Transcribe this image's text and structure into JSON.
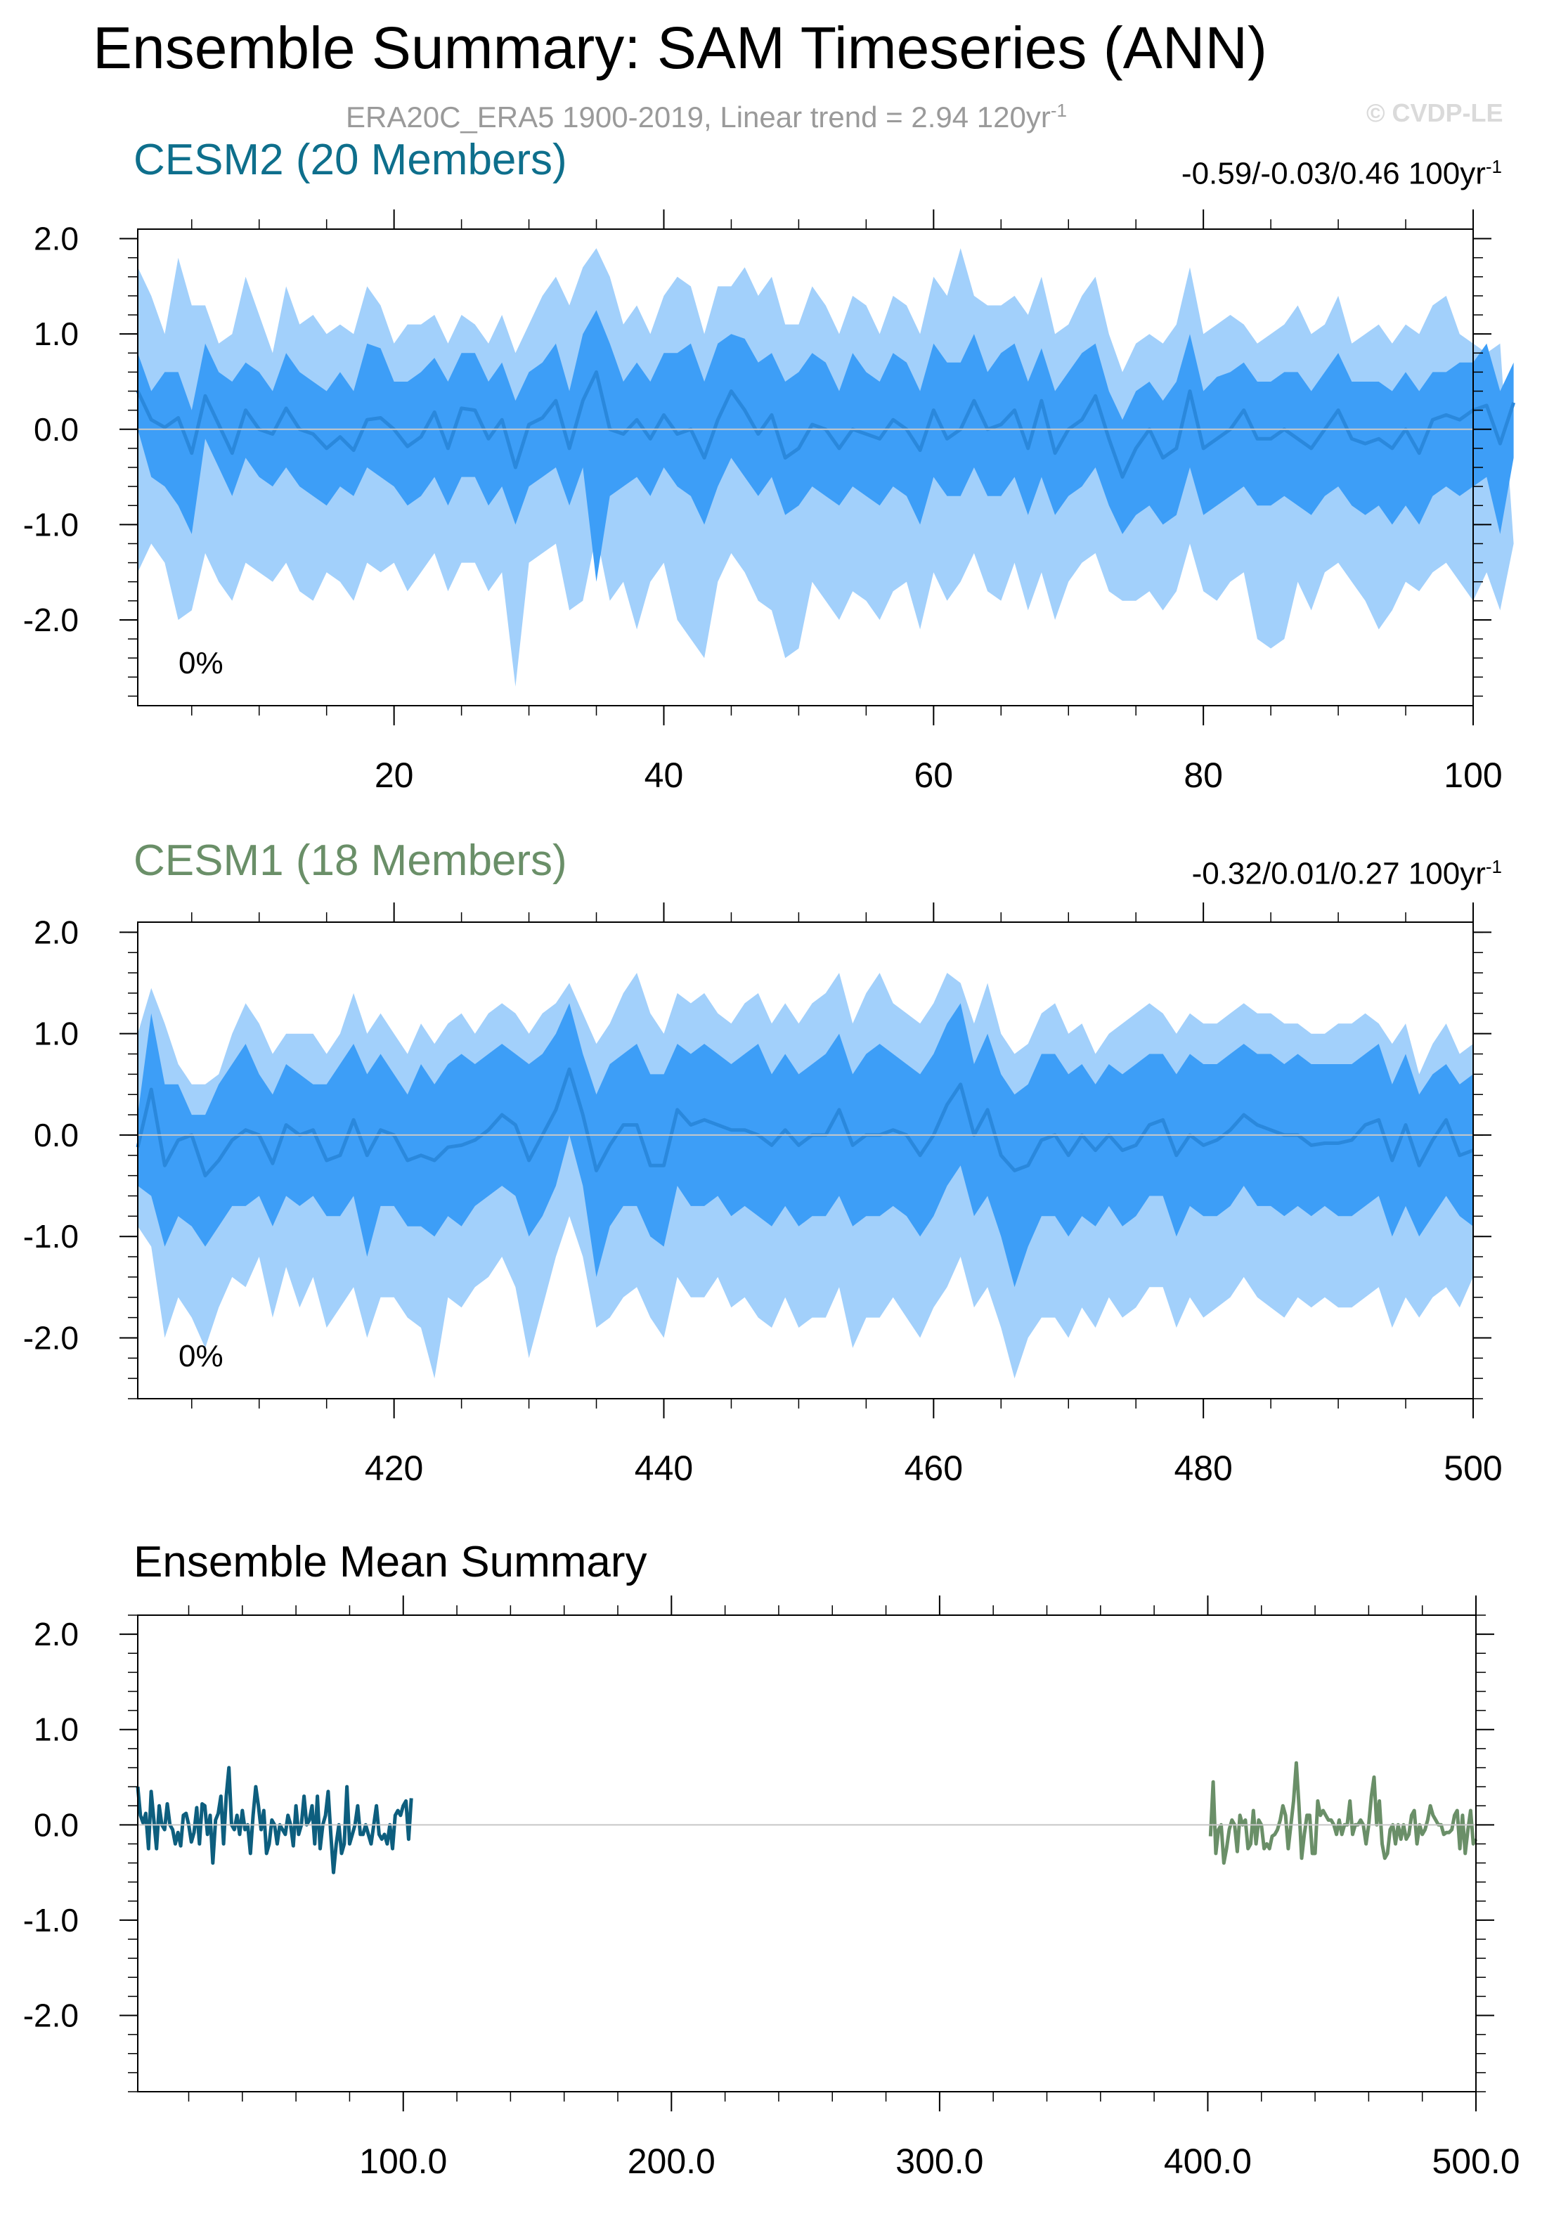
{
  "title": "Ensemble Summary: SAM Timeseries (ANN)",
  "subtitle": "ERA20C_ERA5 1900-2019, Linear trend = 2.94 120yr",
  "subtitle_sup": "-1",
  "copyright": "© CVDP-LE",
  "panels": [
    {
      "title": "CESM2 (20 Members)",
      "title_color": "#0e6f8c",
      "trend_text": "-0.59/-0.03/0.46 100yr",
      "trend_sup": "-1",
      "pct_label": "0%"
    },
    {
      "title": "CESM1 (18 Members)",
      "title_color": "#6a8f68",
      "trend_text": "-0.32/0.01/0.27 100yr",
      "trend_sup": "-1",
      "pct_label": "0%"
    },
    {
      "title": "Ensemble Mean Summary",
      "title_color": "#000000"
    }
  ],
  "colors": {
    "outer_band": "#a2d0fb",
    "inner_band": "#3d9ef7",
    "median_line": "#2a88dc",
    "cesm2_line": "#0d5e7e",
    "cesm1_line": "#6a8f68"
  },
  "chart_data": [
    {
      "type": "area",
      "name": "CESM2 (20 Members)",
      "xlim": [
        1,
        100
      ],
      "ylim": [
        -2.9,
        2.1
      ],
      "yticks": [
        2.0,
        1.0,
        0.0,
        -1.0,
        -2.0
      ],
      "ytick_labels": [
        "2.0",
        "1.0",
        "0.0",
        "-1.0",
        "-2.0"
      ],
      "xticks": [
        20,
        40,
        60,
        80,
        100
      ],
      "xtick_labels": [
        "20",
        "40",
        "60",
        "80",
        "100"
      ],
      "x_start": 1,
      "median": [
        0.4,
        0.1,
        0.02,
        0.12,
        -0.25,
        0.35,
        0.05,
        -0.25,
        0.2,
        0.0,
        -0.05,
        0.22,
        0.0,
        -0.05,
        -0.2,
        -0.08,
        -0.22,
        0.1,
        0.12,
        0.0,
        -0.18,
        -0.08,
        0.18,
        -0.2,
        0.22,
        0.2,
        -0.1,
        0.1,
        -0.4,
        0.05,
        0.12,
        0.3,
        -0.2,
        0.3,
        0.6,
        0.0,
        -0.05,
        0.1,
        -0.1,
        0.15,
        -0.05,
        0.0,
        -0.3,
        0.1,
        0.4,
        0.2,
        -0.05,
        0.15,
        -0.3,
        -0.2,
        0.05,
        0.0,
        -0.2,
        0.0,
        -0.05,
        -0.1,
        0.1,
        0.0,
        -0.22,
        0.2,
        -0.1,
        0.0,
        0.3,
        0.0,
        0.05,
        0.2,
        -0.2,
        0.3,
        -0.25,
        0.0,
        0.1,
        0.35,
        -0.1,
        -0.5,
        -0.2,
        0.0,
        -0.3,
        -0.2,
        0.4,
        -0.2,
        -0.1,
        0.0,
        0.2,
        -0.1,
        -0.1,
        0.0,
        -0.1,
        -0.2,
        0.0,
        0.2,
        -0.1,
        -0.15,
        -0.1,
        -0.2,
        0.0,
        -0.25,
        0.1,
        0.15,
        0.1,
        0.2,
        0.25,
        -0.15,
        0.28
      ],
      "inner_upper": [
        0.8,
        0.4,
        0.6,
        0.6,
        0.2,
        0.9,
        0.6,
        0.5,
        0.7,
        0.6,
        0.4,
        0.8,
        0.6,
        0.5,
        0.4,
        0.6,
        0.4,
        0.9,
        0.85,
        0.5,
        0.5,
        0.6,
        0.75,
        0.5,
        0.8,
        0.8,
        0.5,
        0.7,
        0.3,
        0.6,
        0.7,
        0.9,
        0.4,
        1.0,
        1.25,
        0.9,
        0.5,
        0.7,
        0.5,
        0.8,
        0.8,
        0.9,
        0.5,
        0.9,
        1.0,
        0.95,
        0.7,
        0.8,
        0.5,
        0.6,
        0.8,
        0.7,
        0.4,
        0.8,
        0.6,
        0.5,
        0.8,
        0.7,
        0.4,
        0.9,
        0.7,
        0.7,
        1.0,
        0.6,
        0.8,
        0.9,
        0.5,
        0.85,
        0.4,
        0.6,
        0.8,
        0.9,
        0.4,
        0.1,
        0.4,
        0.5,
        0.3,
        0.5,
        1.0,
        0.4,
        0.55,
        0.6,
        0.7,
        0.5,
        0.5,
        0.6,
        0.6,
        0.4,
        0.6,
        0.8,
        0.5,
        0.5,
        0.5,
        0.4,
        0.6,
        0.4,
        0.6,
        0.6,
        0.7,
        0.7,
        0.9,
        0.4,
        0.7
      ],
      "inner_lower": [
        0.0,
        -0.5,
        -0.6,
        -0.8,
        -1.1,
        -0.1,
        -0.4,
        -0.7,
        -0.3,
        -0.5,
        -0.6,
        -0.4,
        -0.6,
        -0.7,
        -0.8,
        -0.6,
        -0.7,
        -0.4,
        -0.5,
        -0.6,
        -0.8,
        -0.7,
        -0.5,
        -0.8,
        -0.5,
        -0.5,
        -0.8,
        -0.6,
        -1.0,
        -0.6,
        -0.5,
        -0.4,
        -0.8,
        -0.4,
        -1.6,
        -0.7,
        -0.6,
        -0.5,
        -0.7,
        -0.4,
        -0.6,
        -0.7,
        -1.0,
        -0.6,
        -0.3,
        -0.5,
        -0.7,
        -0.5,
        -0.9,
        -0.8,
        -0.6,
        -0.7,
        -0.8,
        -0.6,
        -0.7,
        -0.8,
        -0.6,
        -0.7,
        -1.0,
        -0.5,
        -0.7,
        -0.7,
        -0.4,
        -0.7,
        -0.7,
        -0.5,
        -0.9,
        -0.5,
        -0.9,
        -0.7,
        -0.6,
        -0.4,
        -0.8,
        -1.1,
        -0.9,
        -0.8,
        -1.0,
        -0.9,
        -0.4,
        -0.9,
        -0.8,
        -0.7,
        -0.6,
        -0.8,
        -0.8,
        -0.7,
        -0.8,
        -0.9,
        -0.7,
        -0.6,
        -0.8,
        -0.9,
        -0.8,
        -1.0,
        -0.8,
        -1.0,
        -0.7,
        -0.6,
        -0.7,
        -0.6,
        -0.5,
        -1.1,
        -0.3
      ],
      "outer_upper": [
        1.7,
        1.4,
        1.0,
        1.8,
        1.3,
        1.3,
        0.9,
        1.0,
        1.6,
        1.2,
        0.8,
        1.5,
        1.1,
        1.2,
        1.0,
        1.1,
        1.0,
        1.5,
        1.3,
        0.9,
        1.1,
        1.1,
        1.2,
        0.9,
        1.2,
        1.1,
        0.9,
        1.2,
        0.8,
        1.1,
        1.4,
        1.6,
        1.3,
        1.7,
        1.9,
        1.6,
        1.1,
        1.3,
        1.0,
        1.4,
        1.6,
        1.5,
        1.0,
        1.5,
        1.5,
        1.7,
        1.4,
        1.6,
        1.1,
        1.1,
        1.5,
        1.3,
        1.0,
        1.4,
        1.3,
        1.0,
        1.4,
        1.3,
        1.0,
        1.6,
        1.4,
        1.9,
        1.4,
        1.3,
        1.3,
        1.4,
        1.2,
        1.6,
        1.0,
        1.1,
        1.4,
        1.6,
        1.0,
        0.6,
        0.9,
        1.0,
        0.9,
        1.1,
        1.7,
        1.0,
        1.1,
        1.2,
        1.1,
        0.9,
        1.0,
        1.1,
        1.3,
        1.0,
        1.1,
        1.4,
        0.9,
        1.0,
        1.1,
        0.9,
        1.1,
        1.0,
        1.3,
        1.4,
        1.0,
        0.9,
        0.8,
        0.9
      ],
      "outer_lower": [
        -1.5,
        -1.2,
        -1.4,
        -2.0,
        -1.9,
        -1.3,
        -1.6,
        -1.8,
        -1.4,
        -1.5,
        -1.6,
        -1.4,
        -1.7,
        -1.8,
        -1.5,
        -1.6,
        -1.8,
        -1.4,
        -1.5,
        -1.4,
        -1.7,
        -1.5,
        -1.3,
        -1.7,
        -1.4,
        -1.4,
        -1.7,
        -1.5,
        -2.7,
        -1.4,
        -1.3,
        -1.2,
        -1.9,
        -1.8,
        -1.1,
        -1.8,
        -1.6,
        -2.1,
        -1.6,
        -1.4,
        -2.0,
        -2.2,
        -2.4,
        -1.6,
        -1.3,
        -1.5,
        -1.8,
        -1.9,
        -2.4,
        -2.3,
        -1.6,
        -1.8,
        -2.0,
        -1.7,
        -1.8,
        -2.0,
        -1.7,
        -1.6,
        -2.1,
        -1.5,
        -1.8,
        -1.6,
        -1.3,
        -1.7,
        -1.8,
        -1.4,
        -1.9,
        -1.5,
        -2.0,
        -1.6,
        -1.4,
        -1.3,
        -1.7,
        -1.8,
        -1.8,
        -1.7,
        -1.9,
        -1.7,
        -1.2,
        -1.7,
        -1.8,
        -1.6,
        -1.5,
        -2.2,
        -2.3,
        -2.2,
        -1.6,
        -1.9,
        -1.5,
        -1.4,
        -1.6,
        -1.8,
        -2.1,
        -1.9,
        -1.6,
        -1.7,
        -1.5,
        -1.4,
        -1.6,
        -1.8,
        -1.5,
        -1.9,
        -1.2
      ]
    },
    {
      "type": "area",
      "name": "CESM1 (18 Members)",
      "xlim": [
        401,
        500
      ],
      "ylim": [
        -2.6,
        2.1
      ],
      "yticks": [
        2.0,
        1.0,
        0.0,
        -1.0,
        -2.0
      ],
      "ytick_labels": [
        "2.0",
        "1.0",
        "0.0",
        "-1.0",
        "-2.0"
      ],
      "xticks": [
        420,
        440,
        460,
        480,
        500
      ],
      "xtick_labels": [
        "420",
        "440",
        "460",
        "480",
        "500"
      ],
      "x_start": 401,
      "median": [
        -0.12,
        0.45,
        -0.3,
        -0.05,
        0.0,
        -0.4,
        -0.25,
        -0.05,
        0.05,
        0.0,
        -0.28,
        0.1,
        0.0,
        0.05,
        -0.25,
        -0.2,
        0.15,
        -0.2,
        0.05,
        0.0,
        -0.25,
        -0.2,
        -0.25,
        -0.12,
        -0.1,
        -0.05,
        0.05,
        0.2,
        0.1,
        -0.25,
        0.0,
        0.25,
        0.65,
        0.2,
        -0.35,
        -0.1,
        0.1,
        0.1,
        -0.3,
        -0.3,
        0.25,
        0.1,
        0.15,
        0.1,
        0.05,
        0.05,
        0.0,
        -0.1,
        0.05,
        -0.1,
        0.0,
        0.0,
        0.25,
        -0.1,
        0.0,
        0.0,
        0.05,
        0.0,
        -0.2,
        0.0,
        0.3,
        0.5,
        0.0,
        0.25,
        -0.2,
        -0.35,
        -0.3,
        -0.05,
        0.0,
        -0.2,
        0.0,
        -0.15,
        0.0,
        -0.15,
        -0.1,
        0.1,
        0.15,
        -0.2,
        0.0,
        -0.1,
        -0.05,
        0.05,
        0.2,
        0.1,
        0.05,
        0.0,
        0.0,
        -0.1,
        -0.08,
        -0.08,
        -0.05,
        0.1,
        0.15,
        -0.25,
        0.1,
        -0.3,
        -0.05,
        0.15,
        -0.2,
        -0.15
      ],
      "inner_upper": [
        0.2,
        1.2,
        0.5,
        0.5,
        0.2,
        0.2,
        0.5,
        0.7,
        0.9,
        0.6,
        0.4,
        0.7,
        0.6,
        0.5,
        0.5,
        0.7,
        0.9,
        0.6,
        0.8,
        0.6,
        0.4,
        0.7,
        0.5,
        0.7,
        0.8,
        0.7,
        0.8,
        0.9,
        0.8,
        0.7,
        0.8,
        1.0,
        1.3,
        0.8,
        0.4,
        0.7,
        0.8,
        0.9,
        0.6,
        0.6,
        0.9,
        0.8,
        0.9,
        0.8,
        0.7,
        0.8,
        0.9,
        0.6,
        0.8,
        0.6,
        0.7,
        0.8,
        1.0,
        0.6,
        0.8,
        0.9,
        0.8,
        0.7,
        0.6,
        0.8,
        1.1,
        1.3,
        0.7,
        1.0,
        0.6,
        0.4,
        0.5,
        0.8,
        0.8,
        0.6,
        0.7,
        0.5,
        0.7,
        0.6,
        0.7,
        0.8,
        0.8,
        0.6,
        0.8,
        0.7,
        0.7,
        0.8,
        0.9,
        0.8,
        0.8,
        0.7,
        0.8,
        0.7,
        0.7,
        0.7,
        0.7,
        0.8,
        0.9,
        0.5,
        0.8,
        0.4,
        0.6,
        0.7,
        0.5,
        0.6
      ],
      "inner_lower": [
        -0.5,
        -0.6,
        -1.1,
        -0.8,
        -0.9,
        -1.1,
        -0.9,
        -0.7,
        -0.7,
        -0.6,
        -0.9,
        -0.6,
        -0.7,
        -0.6,
        -0.8,
        -0.8,
        -0.6,
        -1.2,
        -0.7,
        -0.7,
        -0.9,
        -0.9,
        -1.0,
        -0.8,
        -0.9,
        -0.7,
        -0.6,
        -0.5,
        -0.6,
        -1.0,
        -0.8,
        -0.5,
        0.0,
        -0.5,
        -1.4,
        -0.9,
        -0.7,
        -0.7,
        -1.0,
        -1.1,
        -0.5,
        -0.7,
        -0.7,
        -0.6,
        -0.8,
        -0.7,
        -0.8,
        -0.9,
        -0.7,
        -0.9,
        -0.8,
        -0.8,
        -0.6,
        -0.9,
        -0.8,
        -0.8,
        -0.7,
        -0.8,
        -1.0,
        -0.8,
        -0.5,
        -0.3,
        -0.8,
        -0.6,
        -1.0,
        -1.5,
        -1.1,
        -0.8,
        -0.8,
        -1.0,
        -0.8,
        -0.9,
        -0.7,
        -0.9,
        -0.8,
        -0.6,
        -0.6,
        -1.0,
        -0.7,
        -0.8,
        -0.8,
        -0.7,
        -0.5,
        -0.7,
        -0.7,
        -0.8,
        -0.7,
        -0.8,
        -0.7,
        -0.8,
        -0.8,
        -0.7,
        -0.6,
        -1.0,
        -0.7,
        -1.0,
        -0.8,
        -0.6,
        -0.8,
        -0.9
      ],
      "outer_upper": [
        1.0,
        1.45,
        1.1,
        0.7,
        0.5,
        0.5,
        0.6,
        1.0,
        1.3,
        1.1,
        0.8,
        1.0,
        1.0,
        1.0,
        0.8,
        1.0,
        1.4,
        1.0,
        1.2,
        1.0,
        0.8,
        1.1,
        0.9,
        1.1,
        1.2,
        1.0,
        1.2,
        1.3,
        1.2,
        1.0,
        1.2,
        1.3,
        1.5,
        1.2,
        0.9,
        1.1,
        1.4,
        1.6,
        1.2,
        1.0,
        1.4,
        1.3,
        1.4,
        1.2,
        1.1,
        1.3,
        1.4,
        1.1,
        1.3,
        1.1,
        1.3,
        1.4,
        1.6,
        1.1,
        1.4,
        1.6,
        1.3,
        1.2,
        1.1,
        1.3,
        1.6,
        1.5,
        1.1,
        1.5,
        1.0,
        0.8,
        0.9,
        1.2,
        1.3,
        1.0,
        1.1,
        0.8,
        1.0,
        1.1,
        1.2,
        1.3,
        1.2,
        1.0,
        1.2,
        1.1,
        1.1,
        1.2,
        1.3,
        1.2,
        1.2,
        1.1,
        1.1,
        1.0,
        1.0,
        1.1,
        1.1,
        1.2,
        1.1,
        0.9,
        1.1,
        0.6,
        0.9,
        1.1,
        0.8,
        0.9
      ],
      "outer_lower": [
        -0.9,
        -1.1,
        -2.0,
        -1.6,
        -1.8,
        -2.1,
        -1.7,
        -1.4,
        -1.5,
        -1.2,
        -1.8,
        -1.3,
        -1.7,
        -1.4,
        -1.9,
        -1.7,
        -1.5,
        -2.0,
        -1.6,
        -1.6,
        -1.8,
        -1.9,
        -2.4,
        -1.6,
        -1.7,
        -1.5,
        -1.4,
        -1.2,
        -1.5,
        -2.2,
        -1.7,
        -1.2,
        -0.8,
        -1.2,
        -1.9,
        -1.8,
        -1.6,
        -1.5,
        -1.8,
        -2.0,
        -1.4,
        -1.6,
        -1.6,
        -1.4,
        -1.7,
        -1.6,
        -1.8,
        -1.9,
        -1.6,
        -1.9,
        -1.8,
        -1.8,
        -1.5,
        -2.1,
        -1.8,
        -1.8,
        -1.6,
        -1.8,
        -2.0,
        -1.7,
        -1.5,
        -1.2,
        -1.7,
        -1.5,
        -1.9,
        -2.4,
        -2.0,
        -1.8,
        -1.8,
        -2.0,
        -1.7,
        -1.9,
        -1.6,
        -1.8,
        -1.7,
        -1.5,
        -1.5,
        -1.9,
        -1.6,
        -1.8,
        -1.7,
        -1.6,
        -1.4,
        -1.6,
        -1.7,
        -1.8,
        -1.6,
        -1.7,
        -1.6,
        -1.7,
        -1.7,
        -1.6,
        -1.5,
        -1.9,
        -1.6,
        -1.8,
        -1.6,
        -1.5,
        -1.7,
        -1.4
      ]
    },
    {
      "type": "line",
      "name": "Ensemble Mean Summary",
      "xlim": [
        1,
        500
      ],
      "ylim": [
        -2.8,
        2.2
      ],
      "yticks": [
        2.0,
        1.0,
        0.0,
        -1.0,
        -2.0
      ],
      "ytick_labels": [
        "2.0",
        "1.0",
        "0.0",
        "-1.0",
        "-2.0"
      ],
      "xticks": [
        100,
        200,
        300,
        400,
        500
      ],
      "xtick_labels": [
        "100.0",
        "200.0",
        "300.0",
        "400.0",
        "500.0"
      ],
      "series": [
        {
          "x_start": 1,
          "color_key": "cesm2_line",
          "source_panel": 0
        },
        {
          "x_start": 401,
          "color_key": "cesm1_line",
          "source_panel": 1
        }
      ]
    }
  ]
}
